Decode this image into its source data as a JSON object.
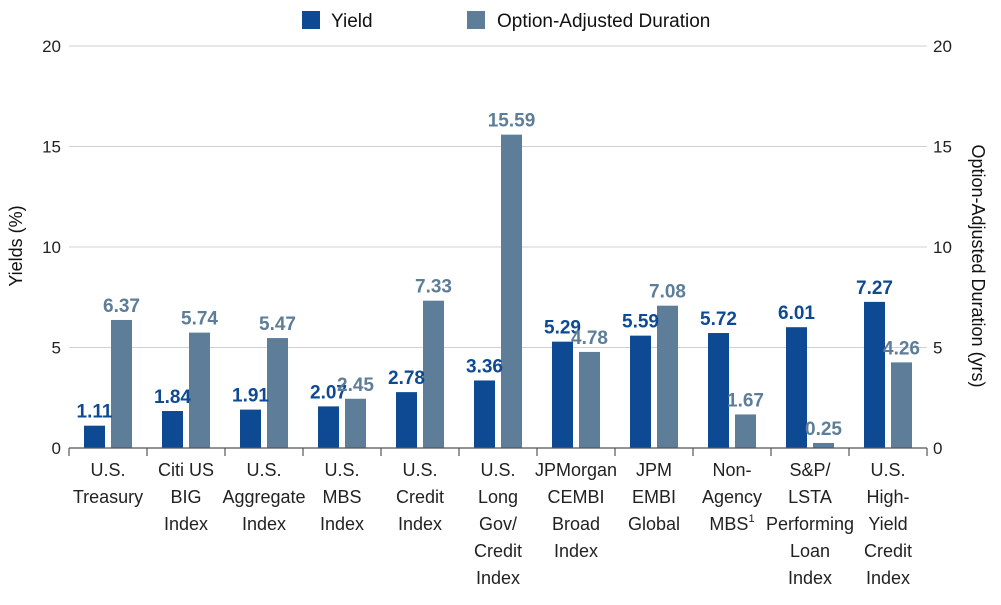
{
  "chart_data": {
    "type": "bar",
    "title": "",
    "categories": [
      [
        "U.S.",
        "Treasury"
      ],
      [
        "Citi US",
        "BIG",
        "Index"
      ],
      [
        "U.S.",
        "Aggregate",
        "Index"
      ],
      [
        "U.S.",
        "MBS",
        "Index"
      ],
      [
        "U.S.",
        "Credit",
        "Index"
      ],
      [
        "U.S.",
        "Long",
        "Gov/",
        "Credit",
        "Index"
      ],
      [
        "JPMorgan",
        "CEMBI",
        "Broad",
        "Index"
      ],
      [
        "JPM",
        "EMBI",
        "Global"
      ],
      [
        "Non-",
        "Agency",
        "MBS"
      ],
      [
        "S&P/",
        "LSTA",
        "Performing",
        "Loan",
        "Index"
      ],
      [
        "U.S.",
        "High-",
        "Yield",
        "Credit",
        "Index"
      ]
    ],
    "category_superscripts": [
      "",
      "",
      "",
      "",
      "",
      "",
      "",
      "",
      "1",
      "",
      ""
    ],
    "series": [
      {
        "name": "Yield",
        "axis": "left",
        "color": "#0d4a93",
        "label_color": "#0d4a93",
        "values": [
          1.11,
          1.84,
          1.91,
          2.07,
          2.78,
          3.36,
          5.29,
          5.59,
          5.72,
          6.01,
          7.27
        ],
        "labels": [
          "1.11",
          "1.84",
          "1.91",
          "2.07",
          "2.78",
          "3.36",
          "5.29",
          "5.59",
          "5.72",
          "6.01",
          "7.27"
        ]
      },
      {
        "name": "Option-Adjusted Duration",
        "axis": "right",
        "color": "#5d7d98",
        "label_color": "#5d7d98",
        "values": [
          6.37,
          5.74,
          5.47,
          2.45,
          7.33,
          15.59,
          4.78,
          7.08,
          1.67,
          0.25,
          4.26
        ],
        "labels": [
          "6.37",
          "5.74",
          "5.47",
          "2.45",
          "7.33",
          "15.59",
          "4.78",
          "7.08",
          "1.67",
          "0.25",
          "4.26"
        ]
      }
    ],
    "ylabel": "Yields (%)",
    "ylabel_right": "Option-Adjusted Duration (yrs)",
    "ylim": [
      0,
      20
    ],
    "ylim_right": [
      0,
      20
    ],
    "yticks": [
      "0",
      "5",
      "10",
      "15",
      "20"
    ],
    "yticks_values": [
      0,
      5,
      10,
      15,
      20
    ],
    "grid": true,
    "legend_position": "top-center"
  }
}
